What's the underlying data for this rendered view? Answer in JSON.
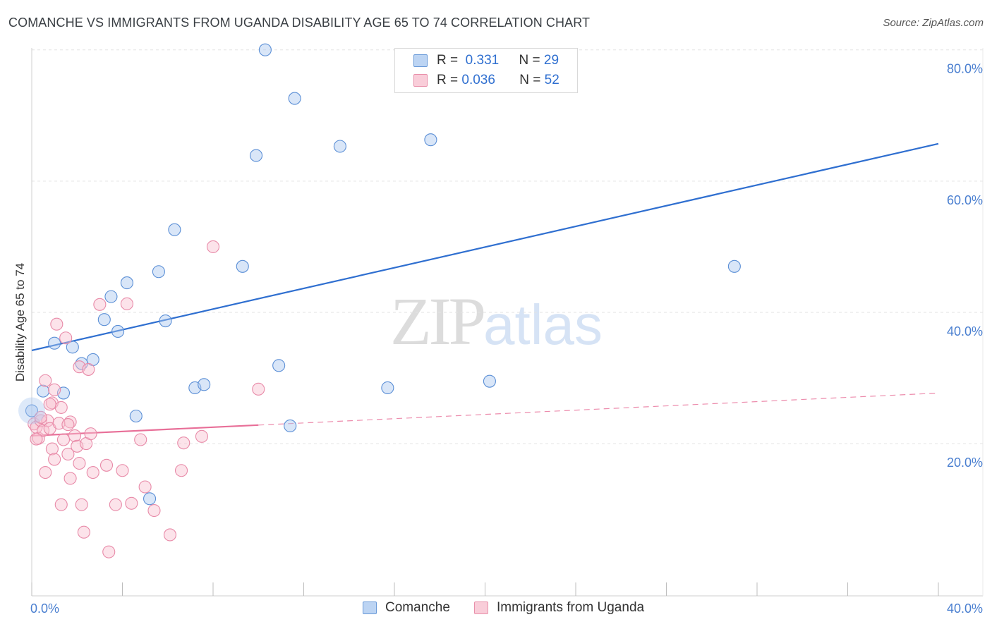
{
  "header": {
    "title": "COMANCHE VS IMMIGRANTS FROM UGANDA DISABILITY AGE 65 TO 74 CORRELATION CHART",
    "source": "Source: ZipAtlas.com"
  },
  "watermark": {
    "zip": "ZIP",
    "atlas": "atlas"
  },
  "legend": {
    "rows": [
      {
        "r_label": "R =",
        "r_value": "0.331",
        "n_label": "N =",
        "n_value": "29",
        "color": "#aac8f0",
        "stroke": "#6a9ad8"
      },
      {
        "r_label": "R =",
        "r_value": "0.036",
        "n_label": "N =",
        "n_value": "52",
        "color": "#f8c0d0",
        "stroke": "#e890aa"
      }
    ]
  },
  "bottom_legend": {
    "series1": "Comanche",
    "series2": "Immigrants from Uganda"
  },
  "chart_data": {
    "type": "scatter",
    "ylabel": "Disability Age 65 to 74",
    "xlabel": "",
    "xlim": [
      0,
      40
    ],
    "ylim": [
      0,
      80
    ],
    "x_tick_labels": [
      "0.0%",
      "40.0%"
    ],
    "y_ticks": [
      20,
      40,
      60,
      80
    ],
    "y_tick_labels": [
      "20.0%",
      "40.0%",
      "60.0%",
      "80.0%"
    ],
    "grid": true,
    "series": [
      {
        "name": "Comanche",
        "color": "#aac8f0",
        "stroke": "#5b8fd6",
        "trend": {
          "x0": 0,
          "y0": 34.2,
          "x1": 40,
          "y1": 65.7,
          "dashed_from": null
        },
        "points": [
          [
            0.0,
            25.0
          ],
          [
            0.5,
            28.0
          ],
          [
            1.0,
            35.3
          ],
          [
            1.4,
            27.7
          ],
          [
            1.8,
            34.7
          ],
          [
            2.2,
            32.2
          ],
          [
            2.7,
            32.8
          ],
          [
            3.2,
            38.9
          ],
          [
            3.5,
            42.4
          ],
          [
            3.8,
            37.1
          ],
          [
            4.2,
            44.5
          ],
          [
            4.6,
            24.2
          ],
          [
            5.2,
            11.6
          ],
          [
            5.6,
            46.2
          ],
          [
            5.9,
            38.7
          ],
          [
            6.3,
            52.6
          ],
          [
            7.2,
            28.5
          ],
          [
            7.6,
            29.0
          ],
          [
            9.3,
            47.0
          ],
          [
            9.9,
            63.9
          ],
          [
            10.3,
            80.0
          ],
          [
            10.9,
            31.9
          ],
          [
            11.4,
            22.7
          ],
          [
            11.6,
            72.6
          ],
          [
            13.6,
            65.3
          ],
          [
            15.7,
            28.5
          ],
          [
            17.6,
            66.3
          ],
          [
            20.2,
            29.5
          ],
          [
            31.0,
            47.0
          ]
        ]
      },
      {
        "name": "Immigrants from Uganda",
        "color": "#f8c0d0",
        "stroke": "#e88aa8",
        "trend": {
          "x0": 0,
          "y0": 21.2,
          "x1": 40,
          "y1": 27.7,
          "dashed_from": 10.0
        },
        "points": [
          [
            0.1,
            23.0
          ],
          [
            0.2,
            22.5
          ],
          [
            0.3,
            20.8
          ],
          [
            0.4,
            23.5
          ],
          [
            0.5,
            22.0
          ],
          [
            0.6,
            15.6
          ],
          [
            0.6,
            29.6
          ],
          [
            0.7,
            23.5
          ],
          [
            0.8,
            22.3
          ],
          [
            0.9,
            19.2
          ],
          [
            0.9,
            26.2
          ],
          [
            1.0,
            28.2
          ],
          [
            1.0,
            17.6
          ],
          [
            1.1,
            38.2
          ],
          [
            1.2,
            23.1
          ],
          [
            1.3,
            25.5
          ],
          [
            1.3,
            10.7
          ],
          [
            1.4,
            20.6
          ],
          [
            1.5,
            36.1
          ],
          [
            1.6,
            18.4
          ],
          [
            1.7,
            23.3
          ],
          [
            1.7,
            14.7
          ],
          [
            1.9,
            21.2
          ],
          [
            2.0,
            19.6
          ],
          [
            2.1,
            31.7
          ],
          [
            2.1,
            17.0
          ],
          [
            2.2,
            10.7
          ],
          [
            2.3,
            6.5
          ],
          [
            2.4,
            20.0
          ],
          [
            2.5,
            31.3
          ],
          [
            2.6,
            21.5
          ],
          [
            2.7,
            15.6
          ],
          [
            3.0,
            41.2
          ],
          [
            3.3,
            16.7
          ],
          [
            3.4,
            3.5
          ],
          [
            3.7,
            10.7
          ],
          [
            4.0,
            15.9
          ],
          [
            4.2,
            41.3
          ],
          [
            4.4,
            10.9
          ],
          [
            4.8,
            20.6
          ],
          [
            5.0,
            13.4
          ],
          [
            5.4,
            9.8
          ],
          [
            6.1,
            6.1
          ],
          [
            6.6,
            15.9
          ],
          [
            6.7,
            20.1
          ],
          [
            7.5,
            21.1
          ],
          [
            8.0,
            50.0
          ],
          [
            10.0,
            28.3
          ],
          [
            0.2,
            20.7
          ],
          [
            0.4,
            24.0
          ],
          [
            0.8,
            26.0
          ],
          [
            1.6,
            22.9
          ]
        ]
      }
    ]
  }
}
